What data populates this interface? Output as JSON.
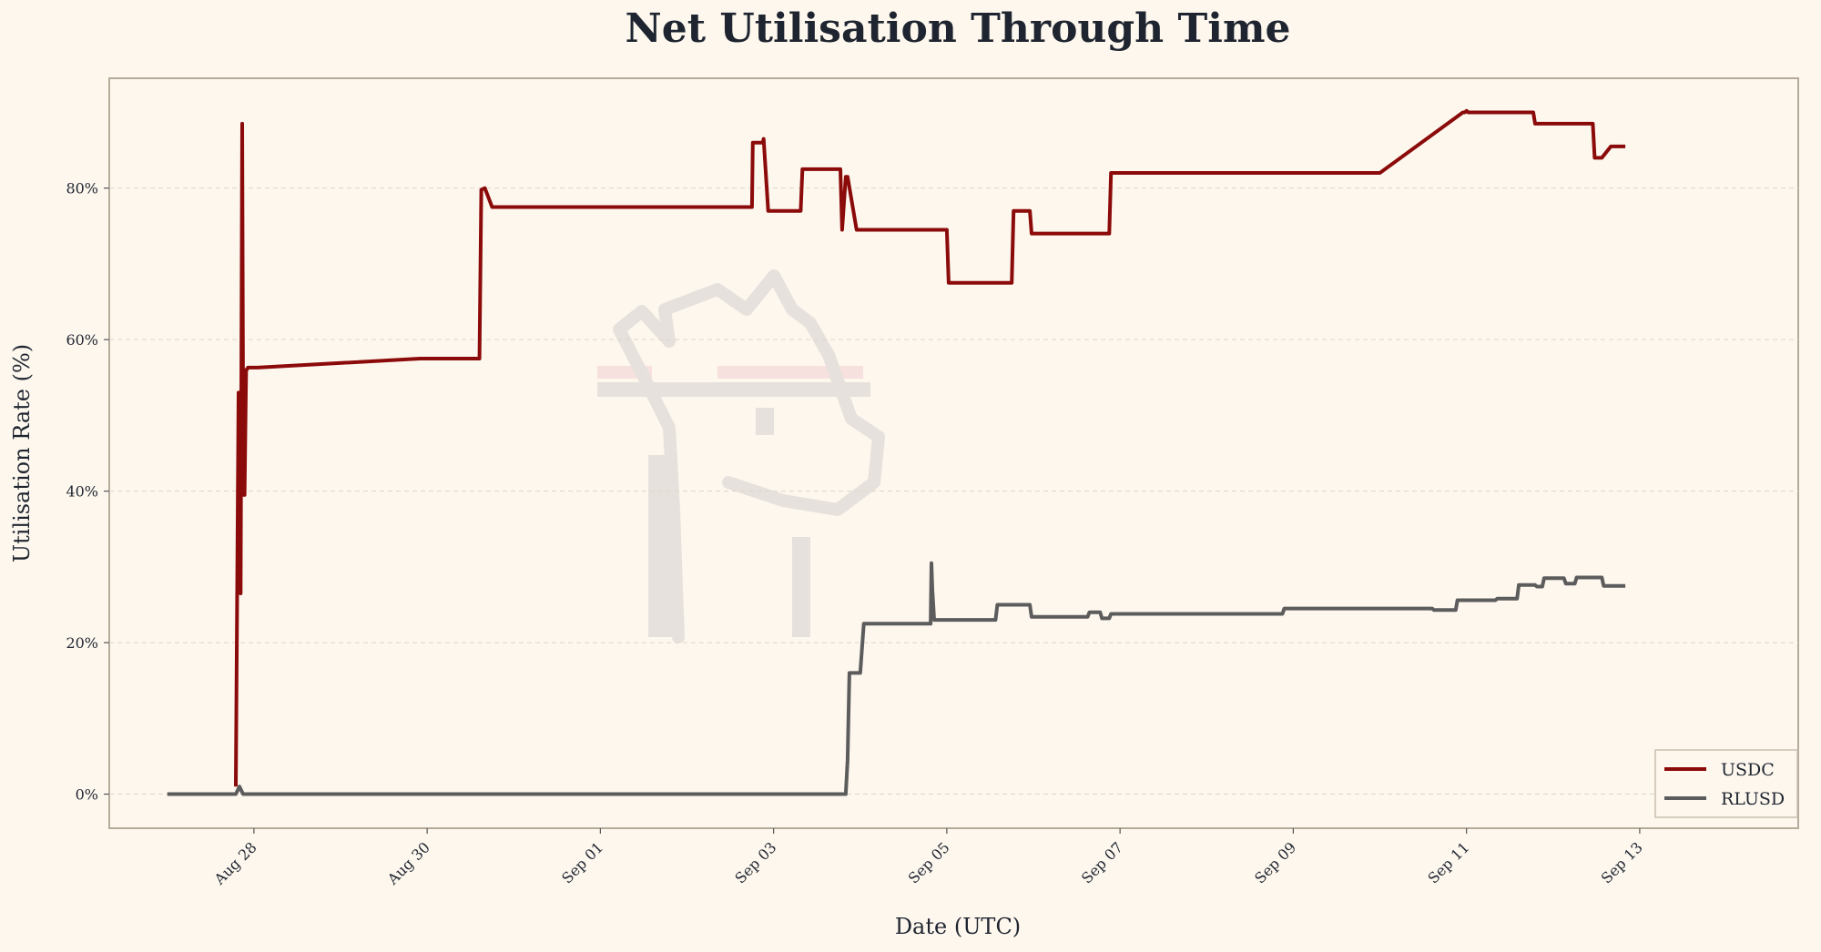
{
  "chart_data": {
    "type": "line",
    "title": "Net Utilisation Through Time",
    "xlabel": "Date (UTC)",
    "ylabel": "Utilisation Rate (%)",
    "x_tick_labels": [
      "Aug 28",
      "Aug 30",
      "Sep 01",
      "Sep 03",
      "Sep 05",
      "Sep 07",
      "Sep 09",
      "Sep 11",
      "Sep 13"
    ],
    "y_tick_labels": [
      "0%",
      "20%",
      "40%",
      "60%",
      "80%"
    ],
    "y_ticks": [
      0,
      20,
      40,
      60,
      80
    ],
    "ylim": [
      -4.5,
      94.5
    ],
    "xlim_days_from_aug28": [
      -1.67,
      17.83
    ],
    "grid": "horizontal dashed",
    "legend_position": "bottom-right",
    "colors": {
      "USDC": "#8b0a0a",
      "RLUSD": "#5c5c5c",
      "background": "#fdf7ee"
    },
    "series": [
      {
        "name": "USDC",
        "x": [
          "2025-08-27 19:00",
          "2025-08-27 19:45",
          "2025-08-27 19:55",
          "2025-08-27 20:20",
          "2025-08-27 20:45",
          "2025-08-27 21:05",
          "2025-08-27 21:25",
          "2025-08-27 21:50",
          "2025-08-27 22:00",
          "2025-08-27 22:20",
          "2025-08-27 22:30",
          "2025-08-27 22:50",
          "2025-08-28 00:00",
          "2025-08-28 00:30",
          "2025-08-28 01:00",
          "2025-08-29 22:00",
          "2025-08-29 22:30",
          "2025-08-30 14:30",
          "2025-08-30 15:00",
          "2025-08-30 16:00",
          "2025-08-30 18:00",
          "2025-08-30 18:30",
          "2025-09-02 18:00",
          "2025-09-02 18:15",
          "2025-09-02 21:00",
          "2025-09-02 21:15",
          "2025-09-02 22:30",
          "2025-09-03 07:30",
          "2025-09-03 08:00",
          "2025-09-03 18:30",
          "2025-09-03 19:00",
          "2025-09-03 20:00",
          "2025-09-03 20:30",
          "2025-09-03 23:00",
          "2025-09-03 23:30",
          "2025-09-05 00:00",
          "2025-09-05 00:30",
          "2025-09-05 18:00",
          "2025-09-05 18:30",
          "2025-09-05 23:00",
          "2025-09-05 23:30",
          "2025-09-06 21:00",
          "2025-09-06 21:30",
          "2025-09-09 23:00",
          "2025-09-10 00:00",
          "2025-09-10 23:00",
          "2025-09-10 23:30",
          "2025-09-11 00:00",
          "2025-09-11 00:30",
          "2025-09-11 18:30",
          "2025-09-11 19:00",
          "2025-09-12 11:00",
          "2025-09-12 11:30",
          "2025-09-12 13:00",
          "2025-09-12 13:30",
          "2025-09-12 16:00",
          "2025-09-12 16:30",
          "2025-09-12 20:00"
        ],
        "y": [
          1,
          53,
          53,
          26.5,
          88.5,
          39.5,
          39.5,
          56,
          56,
          56.3,
          56.3,
          56.3,
          56.3,
          56.3,
          56.3,
          57.5,
          57.5,
          57.5,
          79.8,
          80,
          77.5,
          77.5,
          77.5,
          86,
          86,
          86.5,
          77,
          77,
          82.5,
          82.5,
          74.5,
          81.5,
          81.5,
          74.5,
          74.5,
          74.5,
          67.5,
          67.5,
          77,
          77,
          74,
          74,
          82,
          82,
          82,
          90,
          90,
          90.2,
          90,
          90,
          88.5,
          88.5,
          84,
          84,
          84,
          85.5,
          85.5,
          85.5
        ]
      },
      {
        "name": "RLUSD",
        "x": [
          "2025-08-27 00:00",
          "2025-08-27 19:00",
          "2025-08-27 20:00",
          "2025-08-27 21:00",
          "2025-08-27 22:00",
          "2025-09-03 20:00",
          "2025-09-03 20:30",
          "2025-09-03 21:00",
          "2025-09-03 22:00",
          "2025-09-04 00:00",
          "2025-09-04 01:00",
          "2025-09-04 19:30",
          "2025-09-04 19:45",
          "2025-09-04 20:00",
          "2025-09-04 20:30",
          "2025-09-05 13:30",
          "2025-09-05 14:00",
          "2025-09-05 23:00",
          "2025-09-05 23:30",
          "2025-09-06 15:00",
          "2025-09-06 15:30",
          "2025-09-06 18:30",
          "2025-09-06 19:00",
          "2025-09-06 21:00",
          "2025-09-06 21:30",
          "2025-09-08 21:00",
          "2025-09-08 21:30",
          "2025-09-10 14:30",
          "2025-09-10 15:00",
          "2025-09-10 21:00",
          "2025-09-10 21:30",
          "2025-09-11 08:00",
          "2025-09-11 08:30",
          "2025-09-11 14:00",
          "2025-09-11 14:30",
          "2025-09-11 19:00",
          "2025-09-11 19:30",
          "2025-09-11 21:00",
          "2025-09-11 21:30",
          "2025-09-12 03:00",
          "2025-09-12 03:30",
          "2025-09-12 06:00",
          "2025-09-12 06:30",
          "2025-09-12 13:30",
          "2025-09-12 14:00",
          "2025-09-12 20:00"
        ],
        "y": [
          0,
          0,
          1,
          0,
          0,
          0,
          4.5,
          16,
          16,
          16,
          22.5,
          22.5,
          30.5,
          27,
          23,
          23,
          25,
          25,
          23.4,
          23.4,
          24,
          24,
          23.2,
          23.2,
          23.8,
          23.8,
          24.5,
          24.5,
          24.3,
          24.3,
          25.6,
          25.6,
          25.8,
          25.8,
          27.6,
          27.6,
          27.4,
          27.4,
          28.5,
          28.5,
          27.8,
          27.8,
          28.6,
          28.6,
          27.5,
          27.5
        ]
      }
    ]
  }
}
